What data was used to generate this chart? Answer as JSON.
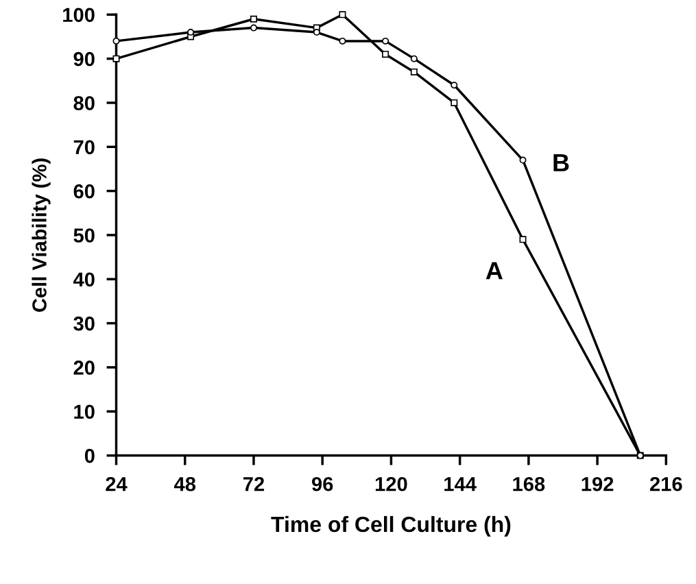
{
  "chart_data": {
    "type": "line",
    "xlabel": "Time of Cell Culture (h)",
    "ylabel": "Cell Viability (%)",
    "xlim": [
      24,
      216
    ],
    "xticks": [
      24,
      48,
      72,
      96,
      120,
      144,
      168,
      192,
      216
    ],
    "ylim": [
      0,
      100
    ],
    "yticks": [
      0,
      10,
      20,
      30,
      40,
      50,
      60,
      70,
      80,
      90,
      100
    ],
    "grid": false,
    "legend": false,
    "line_style": "solid",
    "series": [
      {
        "name": "A",
        "color": "#000000",
        "marker": "square",
        "x": [
          24,
          50,
          72,
          94,
          103,
          118,
          128,
          142,
          166,
          207
        ],
        "values": [
          90,
          95,
          99,
          97,
          100,
          91,
          87,
          80,
          49,
          0
        ]
      },
      {
        "name": "B",
        "color": "#000000",
        "marker": "circle",
        "x": [
          24,
          50,
          72,
          94,
          103,
          118,
          128,
          142,
          166,
          207
        ],
        "values": [
          94,
          96,
          97,
          96,
          94,
          94,
          90,
          84,
          67,
          0
        ]
      }
    ]
  }
}
